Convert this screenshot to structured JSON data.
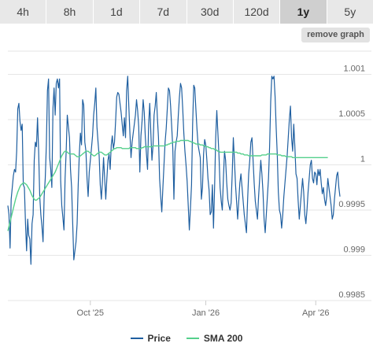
{
  "range_tabs": [
    {
      "label": "4h",
      "active": false
    },
    {
      "label": "8h",
      "active": false
    },
    {
      "label": "1d",
      "active": false
    },
    {
      "label": "7d",
      "active": false
    },
    {
      "label": "30d",
      "active": false
    },
    {
      "label": "120d",
      "active": false
    },
    {
      "label": "1y",
      "active": true
    },
    {
      "label": "5y",
      "active": false
    }
  ],
  "remove_graph_label": "remove graph",
  "colors": {
    "price": "#1f5fa0",
    "sma": "#55d08c",
    "grid": "#e6e6e6"
  },
  "chart_data": {
    "type": "line",
    "title": "",
    "xlabel": "",
    "ylabel": "",
    "ylim": [
      0.9985,
      1.0013
    ],
    "yticks": [
      0.9985,
      0.999,
      0.9995,
      1,
      1.0005,
      1.001
    ],
    "ytick_labels": [
      "0.9985",
      "0.999",
      "0.9995",
      "1",
      "1.0005",
      "1.001"
    ],
    "xticks": [
      {
        "label": "Oct '25",
        "index": 75
      },
      {
        "label": "Jan '26",
        "index": 180
      },
      {
        "label": "Apr '26",
        "index": 280
      }
    ],
    "grid": true,
    "legend_position": "bottom",
    "series": [
      {
        "name": "Price",
        "values": [
          0.99955,
          0.99945,
          0.99908,
          0.99962,
          0.99975,
          0.99988,
          0.99995,
          0.99992,
          1.00015,
          1.00062,
          1.00068,
          1.00048,
          1.00038,
          1.00045,
          0.99978,
          0.99975,
          0.99935,
          0.99905,
          0.9994,
          0.99922,
          0.99918,
          0.9989,
          0.99935,
          0.99945,
          1.00005,
          1.00025,
          1.0002,
          1.00052,
          1.00015,
          0.99965,
          0.99945,
          0.99932,
          0.99915,
          0.99965,
          0.99985,
          1.00022,
          1.00082,
          1.00095,
          1.00008,
          0.99995,
          0.99975,
          1.00062,
          1.00085,
          1.00055,
          1.0009,
          1.00095,
          1.00085,
          1.00095,
          0.99982,
          0.99955,
          0.99942,
          0.99928,
          0.99985,
          1.00015,
          1.00055,
          1.00042,
          1.0003,
          0.99995,
          0.99975,
          0.99935,
          0.99895,
          0.99905,
          0.99915,
          0.99935,
          0.99978,
          1.00012,
          1.00035,
          1.00022,
          1.00072,
          1.00066,
          1.00025,
          1.00015,
          0.99985,
          0.99965,
          0.99992,
          1.00005,
          1.00018,
          1.00032,
          1.00055,
          1.00068,
          1.00085,
          1.00042,
          1.00025,
          1.0001,
          0.99978,
          0.99962,
          0.99982,
          1.00008,
          0.99985,
          0.99962,
          0.99985,
          1.00005,
          1.00012,
          0.99995,
          1.00022,
          1.00032,
          1.00018,
          1.00025,
          1.00048,
          1.00075,
          1.0008,
          1.00078,
          1.00068,
          1.00058,
          1.00045,
          1.00032,
          1.00052,
          1.0003,
          1.00082,
          1.00098,
          1.00065,
          1.00035,
          1.00008,
          1.00025,
          1.00035,
          1.00045,
          1.00055,
          1.00072,
          1.0006,
          1.00042,
          0.99992,
          1.00032,
          1.00048,
          1.00072,
          1.00058,
          1.0003,
          1.00012,
          0.99995,
          1.00045,
          1.00068,
          1.00035,
          1.00005,
          1.00022,
          1.00055,
          1.00065,
          1.0008,
          1.00052,
          1.0003,
          0.99985,
          0.99965,
          0.99948,
          0.99975,
          1.0,
          1.00025,
          1.0004,
          1.00062,
          1.00085,
          1.00082,
          1.00065,
          1.00042,
          1.00018,
          0.99962,
          1.00015,
          1.00025,
          1.00032,
          1.00055,
          1.00075,
          1.0009,
          1.00085,
          1.00062,
          1.00035,
          1.00015,
          1.0,
          0.99982,
          0.99955,
          0.99928,
          0.99952,
          0.99978,
          1.00045,
          1.00088,
          1.00085,
          1.00062,
          1.0004,
          1.00022,
          1.00015,
          1.00008,
          0.99962,
          0.99975,
          1.00012,
          1.00028,
          1.00022,
          1.00005,
          0.99985,
          0.99972,
          0.99945,
          0.99948,
          0.99978,
          0.9993,
          0.99975,
          1.0003,
          1.0006,
          1.00035,
          1.0001,
          0.99975,
          0.9996,
          0.9995,
          0.99985,
          1.00015,
          1.00005,
          0.9998,
          0.99962,
          0.99955,
          0.9995,
          0.99958,
          0.9999,
          1.0003,
          1.00005,
          0.99978,
          0.9996,
          0.9994,
          0.9996,
          0.9998,
          0.9999,
          0.99975,
          0.9996,
          0.99945,
          0.99935,
          0.99925,
          0.9996,
          0.9999,
          1.00005,
          1.00025,
          1.0003,
          1.00005,
          0.9998,
          0.9996,
          0.9995,
          0.9994,
          0.99965,
          0.99985,
          1.00005,
          0.9999,
          0.9997,
          0.9994,
          0.99925,
          0.99945,
          0.99965,
          0.99985,
          1.0002,
          1.0007,
          1.00098,
          1.00095,
          1.00098,
          1.00075,
          1.0004,
          1.0001,
          0.9997,
          0.9995,
          0.99945,
          0.9993,
          0.99945,
          0.99965,
          0.9998,
          0.99995,
          1.0001,
          1.0003,
          1.0005,
          1.00065,
          1.0003,
          1.00015,
          1.00045,
          1.0002,
          0.9999,
          0.99985,
          0.9996,
          0.9994,
          0.99955,
          0.9997,
          0.99985,
          0.9997,
          0.99945,
          0.99935,
          0.9995,
          0.9997,
          0.99985,
          1.0,
          1.00005,
          0.99985,
          0.9998,
          0.99992,
          0.9999,
          0.99978,
          0.99995,
          0.99988,
          0.99995,
          0.9998,
          0.99968,
          0.99975,
          0.99962,
          0.99955,
          0.99965,
          0.99985,
          0.99975,
          0.99965,
          0.99955,
          0.9994,
          0.99945,
          0.99962,
          0.99975,
          0.99988,
          0.99992,
          0.99975,
          0.99965
        ]
      },
      {
        "name": "SMA 200",
        "values": [
          0.99927,
          0.99932,
          0.99937,
          0.99942,
          0.99947,
          0.99952,
          0.99957,
          0.99962,
          0.99966,
          0.9997,
          0.99973,
          0.99976,
          0.99978,
          0.99979,
          0.9998,
          0.9998,
          0.99979,
          0.99978,
          0.99976,
          0.99974,
          0.99972,
          0.99969,
          0.99966,
          0.99964,
          0.99962,
          0.99961,
          0.99961,
          0.99962,
          0.99963,
          0.99964,
          0.99966,
          0.99968,
          0.9997,
          0.99972,
          0.99974,
          0.99976,
          0.99978,
          0.9998,
          0.99982,
          0.99984,
          0.99986,
          0.99988,
          0.9999,
          0.99992,
          0.99995,
          0.99998,
          1.00001,
          1.00004,
          1.00007,
          1.0001,
          1.00012,
          1.00014,
          1.00015,
          1.00015,
          1.00014,
          1.00013,
          1.00012,
          1.00012,
          1.00012,
          1.00012,
          1.00012,
          1.00011,
          1.0001,
          1.00009,
          1.00009,
          1.00009,
          1.0001,
          1.00011,
          1.00012,
          1.00013,
          1.00014,
          1.00015,
          1.00015,
          1.00015,
          1.00014,
          1.00013,
          1.00012,
          1.00011,
          1.0001,
          1.0001,
          1.00011,
          1.00012,
          1.00013,
          1.00014,
          1.00014,
          1.00014,
          1.00013,
          1.00012,
          1.00011,
          1.00011,
          1.00011,
          1.00012,
          1.00013,
          1.00014,
          1.00015,
          1.00016,
          1.00017,
          1.00018,
          1.00018,
          1.00019,
          1.00019,
          1.00019,
          1.00019,
          1.00019,
          1.00018,
          1.00018,
          1.00018,
          1.00018,
          1.00018,
          1.00018,
          1.00018,
          1.00019,
          1.00019,
          1.00019,
          1.00019,
          1.00019,
          1.00019,
          1.00018,
          1.00018,
          1.00018,
          1.00018,
          1.00018,
          1.00019,
          1.00019,
          1.0002,
          1.0002,
          1.0002,
          1.0002,
          1.0002,
          1.0002,
          1.0002,
          1.0002,
          1.00021,
          1.00021,
          1.00021,
          1.00021,
          1.00021,
          1.00021,
          1.00021,
          1.00021,
          1.00021,
          1.00021,
          1.00021,
          1.00021,
          1.00022,
          1.00022,
          1.00023,
          1.00023,
          1.00024,
          1.00024,
          1.00025,
          1.00025,
          1.00025,
          1.00026,
          1.00026,
          1.00026,
          1.00026,
          1.00027,
          1.00027,
          1.00027,
          1.00027,
          1.00027,
          1.00027,
          1.00027,
          1.00027,
          1.00026,
          1.00026,
          1.00025,
          1.00025,
          1.00024,
          1.00024,
          1.00023,
          1.00023,
          1.00023,
          1.00023,
          1.00022,
          1.00022,
          1.00022,
          1.00021,
          1.00021,
          1.0002,
          1.0002,
          1.0002,
          1.00019,
          1.00019,
          1.00018,
          1.00018,
          1.00018,
          1.00017,
          1.00017,
          1.00016,
          1.00015,
          1.00015,
          1.00014,
          1.00014,
          1.00014,
          1.00014,
          1.00014,
          1.00014,
          1.00014,
          1.00014,
          1.00014,
          1.00014,
          1.00014,
          1.00014,
          1.00014,
          1.00014,
          1.00014,
          1.00014,
          1.00013,
          1.00013,
          1.00013,
          1.00012,
          1.00012,
          1.00012,
          1.00011,
          1.00011,
          1.00011,
          1.00011,
          1.0001,
          1.0001,
          1.0001,
          1.0001,
          1.0001,
          1.0001,
          1.0001,
          1.0001,
          1.0001,
          1.0001,
          1.0001,
          1.0001,
          1.00011,
          1.00011,
          1.00011,
          1.00011,
          1.00011,
          1.00012,
          1.00012,
          1.00012,
          1.00012,
          1.00012,
          1.00012,
          1.00012,
          1.00012,
          1.00012,
          1.00011,
          1.00011,
          1.00011,
          1.00011,
          1.0001,
          1.0001,
          1.0001,
          1.0001,
          1.00009,
          1.00009,
          1.00009,
          1.00009,
          1.00009,
          1.00009,
          1.00008,
          1.00008,
          1.00008,
          1.00008,
          1.00008,
          1.00008,
          1.00008,
          1.00008,
          1.00008,
          1.00008,
          1.00008,
          1.00008,
          1.00008,
          1.00008,
          1.00008,
          1.00008,
          1.00008,
          1.00008,
          1.00008,
          1.00008,
          1.00008,
          1.00008,
          1.00008,
          1.00008,
          1.00008,
          1.00008,
          1.00008,
          1.00008,
          1.00008,
          1.00008,
          1.00008,
          1.00008,
          1.00008
        ]
      }
    ]
  }
}
